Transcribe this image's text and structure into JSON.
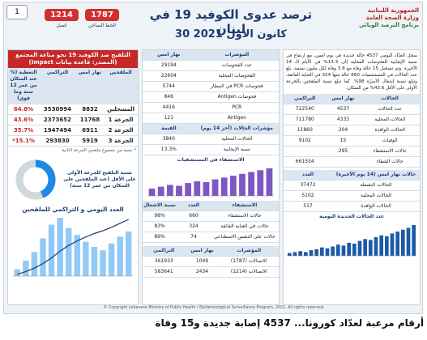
{
  "badge": "1",
  "hotlines": [
    {
      "number": "1214",
      "label": "اتصل"
    },
    {
      "number": "1787",
      "label": "الخط الساخن"
    }
  ],
  "header": {
    "title": "ترصد عدوى الكوفيد 19 في لبنان",
    "date": "30 كانون الاول 2021",
    "logo": [
      "الجمهورية اللبنانية",
      "وزارة الصحة العامة",
      "برنامج الترصد الوبائي"
    ]
  },
  "vaccination": {
    "title": "التلقيح ضد الكوفيد 19 نحو مناعة المجتمع",
    "source": "(المصدر: قاعدة بيانات Impact)",
    "table": {
      "columns": [
        "الملقحين",
        "نهار امس",
        "التراكمي",
        "التغطية (% عند السكان من عمر 12 سنة وما فوق)"
      ],
      "rows": [
        [
          "المسجلين",
          8832,
          3530994,
          "64.8%"
        ],
        [
          "الجرعة 1",
          11768,
          2373652,
          "43.6%"
        ],
        [
          "الجرعة 2",
          6911,
          1947494,
          "35.7%"
        ],
        [
          "الجرعة 3",
          5919,
          293830,
          "15.1%*"
        ]
      ]
    },
    "note": "* نسبة من مجموع ملقحي الجرعة الثانية",
    "donut": {
      "title": "نسبة التلقيح للجرعة الأولى على الأقل (عند الملقحين على السكان من عمر 12 سنة)",
      "value": 43.6
    },
    "chart": {
      "title": "العدد اليومي و التراكمي للملقحين",
      "daily": [
        4,
        9,
        14,
        22,
        30,
        34,
        28,
        24,
        20,
        17,
        15,
        19,
        23,
        26
      ],
      "cumulative": [
        3,
        8,
        14,
        22,
        32,
        44,
        54,
        62,
        69,
        75,
        80,
        86,
        93,
        100
      ]
    }
  },
  "tests": {
    "table": {
      "columns": [
        "المؤشرات",
        "نهار امس"
      ],
      "rows": [
        [
          "عدد الفحوصات",
          29194
        ],
        [
          "الفحوصات المحلية",
          22604
        ],
        [
          "فحوصات PCR في المطار",
          5744
        ],
        [
          "فحوصات Antigen",
          846
        ],
        [
          "PCR",
          4416
        ],
        [
          "Antigen",
          121
        ]
      ]
    },
    "positivity": {
      "columns": [
        "مؤشرات الحالات (آخر 14 يوم)",
        "القيمة"
      ],
      "rows": [
        [
          "الحالات المحلية",
          3840
        ],
        [
          "نسبة الإيجابية",
          "13.3%"
        ]
      ]
    },
    "chart": {
      "title": "الاستشفاء في المستشفيات",
      "values": [
        8,
        10,
        12,
        11,
        14,
        16,
        15,
        18,
        20,
        22,
        24,
        26,
        28,
        30
      ]
    },
    "hospital": {
      "columns": [
        "الاستشفاء",
        "العدد",
        "نسبة الاشغال"
      ],
      "rows": [
        [
          "حالات الاستشفاء",
          660,
          "98%"
        ],
        [
          "حالات في العناية الفائقة",
          324,
          "83%"
        ],
        [
          "حالات على التنفس الاصطناعي",
          74,
          "89%"
        ]
      ]
    },
    "totals": {
      "columns": [
        "المؤشرات",
        "نهار امس",
        "التراكمي"
      ],
      "rows": [
        [
          "الاتصالات (1787)",
          1049,
          361933
        ],
        [
          "الاتصالات (1214)",
          2434,
          583641
        ]
      ]
    }
  },
  "cases": {
    "text": "سجل العدّاد اليومي 4537 حالة جديدة في يوم امس، مع ارتفاع في نسبة الإيجابية للفحوصات المحلية إلى 13.3% في الأيام الـ 14 الأخيرة. وتم تسجيل 15 حالة وفاة مع 3.8 وفاة لكل مليون نسمة. بلغ عدد الحالات في المستشفيات 660 حالة منها 324 في العناية الفائقة، وتبلغ نسبة إشغال الأسرّة 98%. كما تبلغ نسبة الملقحين بالجرعة الأولى على الأقل 43.6% من السكان.",
    "table": {
      "columns": [
        "الحالات",
        "نهار امس",
        "التراكمي"
      ],
      "rows": [
        [
          "عدد الحالات",
          4537,
          722540
        ],
        [
          "الحالات المحلية",
          4333,
          711780
        ],
        [
          "الحالات الوافدة",
          204,
          11860
        ],
        [
          "الوفيات",
          15,
          9102
        ],
        [
          "حالات الاستشفاء",
          295,
          null
        ],
        [
          "حالات الشفاء",
          null,
          661554
        ]
      ]
    },
    "recent": {
      "columns": [
        "حالات نهار امس (14 يوم الأخيرة)",
        "العدد"
      ],
      "rows": [
        [
          "الحالات النشطة",
          37472
        ],
        [
          "الحالات المحلية",
          5102
        ],
        [
          "الحالات الوافدة",
          517
        ]
      ]
    },
    "chart": {
      "title": "عدد الحالات الجديدة اليومية",
      "values": [
        3,
        4,
        5,
        4,
        6,
        7,
        9,
        8,
        10,
        12,
        11,
        14,
        13,
        16,
        18,
        17,
        20,
        22,
        21,
        24,
        26,
        28,
        30,
        33
      ]
    }
  },
  "footer": "© Copyright Lebanese Ministry of Public Health / Epidemiological Surveillance Program, 2021. All rights reserved.",
  "caption": "أرقام مرعبة لعدّاد كورونا... 4537 إصابة جديدة و15 وفاة"
}
